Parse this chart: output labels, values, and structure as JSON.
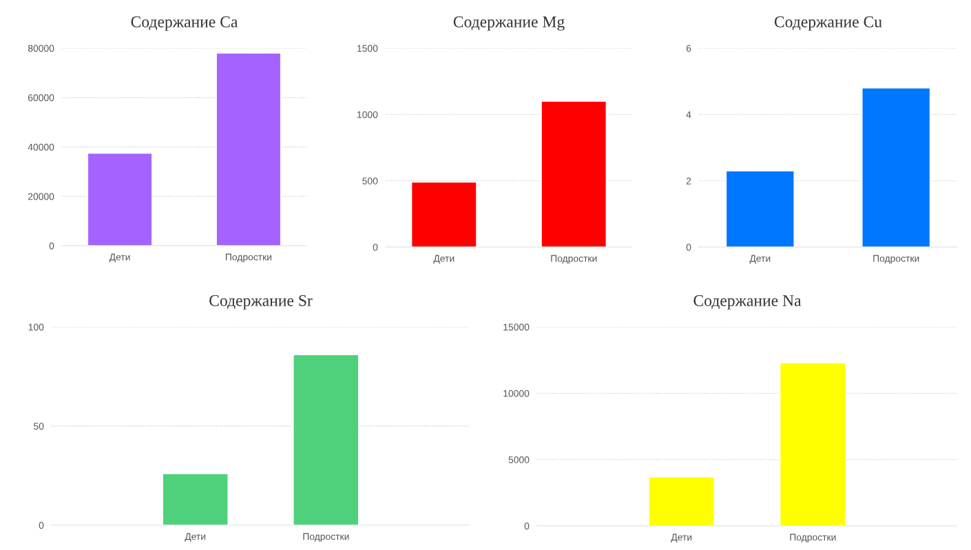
{
  "chart_data": [
    {
      "type": "bar",
      "title": "Содержание Ca",
      "categories": [
        "Дети",
        "Подростки"
      ],
      "values": [
        37500,
        78000
      ],
      "color": "#a463ff",
      "ylim": [
        0,
        80000
      ],
      "yticks": [
        0,
        20000,
        40000,
        60000,
        80000
      ],
      "grid": "y"
    },
    {
      "type": "bar",
      "title": "Содержание Mg",
      "categories": [
        "Дети",
        "Подростки"
      ],
      "values": [
        490,
        1100
      ],
      "color": "#ff0000",
      "ylim": [
        0,
        1500
      ],
      "yticks": [
        0,
        500,
        1000,
        1500
      ],
      "grid": "y"
    },
    {
      "type": "bar",
      "title": "Содержание Cu",
      "categories": [
        "Дети",
        "Подростки"
      ],
      "values": [
        2.3,
        4.8
      ],
      "color": "#0077ff",
      "ylim": [
        0,
        6
      ],
      "yticks": [
        0,
        2,
        4,
        6
      ],
      "grid": "y"
    },
    {
      "type": "bar",
      "title": "Содержание Sr",
      "categories": [
        "Дети",
        "Подростки"
      ],
      "values": [
        26,
        86
      ],
      "color": "#4fd17c",
      "ylim": [
        0,
        100
      ],
      "yticks": [
        0,
        50,
        100
      ],
      "grid": "y"
    },
    {
      "type": "bar",
      "title": "Содержание Na",
      "categories": [
        "Дети",
        "Подростки"
      ],
      "values": [
        3700,
        12300
      ],
      "color": "#ffff00",
      "ylim": [
        0,
        15000
      ],
      "yticks": [
        0,
        5000,
        10000,
        15000
      ],
      "grid": "y"
    }
  ]
}
